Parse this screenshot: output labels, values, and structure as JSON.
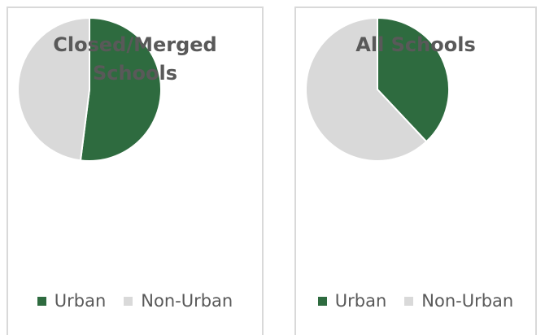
{
  "chart_data": [
    {
      "type": "pie",
      "title": "Closed/Merged Schools",
      "categories": [
        "Urban",
        "Non-Urban"
      ],
      "values": [
        52,
        48
      ],
      "colors": [
        "#2e6b3f",
        "#d9d9d9"
      ]
    },
    {
      "type": "pie",
      "title": "All Schools",
      "categories": [
        "Urban",
        "Non-Urban"
      ],
      "values": [
        38,
        62
      ],
      "colors": [
        "#2e6b3f",
        "#d9d9d9"
      ]
    }
  ]
}
